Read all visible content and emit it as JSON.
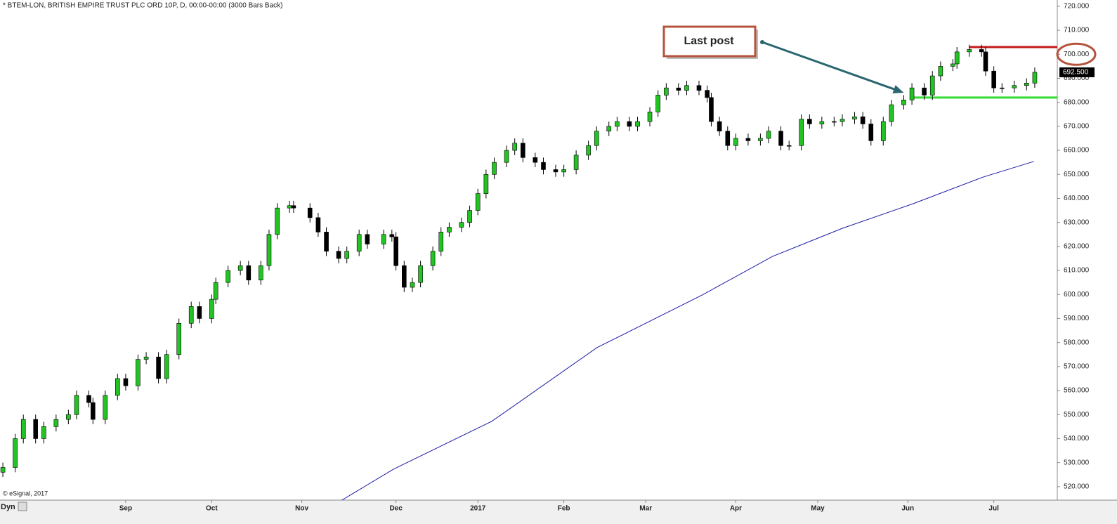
{
  "chart_data": {
    "type": "candlestick",
    "title": "* BTEM-LON, BRITISH EMPIRE TRUST PLC ORD 10P, D, 00:00-00:00 (3000 Bars Back)",
    "watermark": "© eSignal, 2017",
    "mode_label": "Dyn",
    "up_color": "#22c322",
    "down_color": "#000000",
    "x": [
      0,
      3,
      5,
      8,
      10,
      13,
      16,
      18,
      21,
      22,
      25,
      28,
      30,
      33,
      35,
      38,
      40,
      43,
      46,
      48,
      51,
      52,
      55,
      58,
      60,
      63,
      65,
      67,
      70,
      71,
      75,
      77,
      79,
      82,
      84,
      87,
      89,
      93,
      95,
      96,
      98,
      100,
      102,
      105,
      107,
      109,
      112,
      114,
      116,
      118,
      120,
      123,
      125,
      127,
      130,
      132,
      135,
      137,
      140,
      143,
      145,
      148,
      150,
      153,
      155,
      158,
      160,
      162,
      165,
      167,
      170,
      172,
      173,
      175,
      177,
      179,
      182,
      185,
      187,
      190,
      192,
      195,
      197,
      200,
      203,
      205,
      208,
      210,
      212,
      215,
      217,
      220,
      222,
      225,
      227,
      229,
      232,
      233,
      236,
      239,
      240,
      242,
      244,
      247,
      250,
      252
    ],
    "open": [
      526,
      528,
      540,
      548,
      540,
      545,
      548,
      550,
      558,
      555,
      548,
      558,
      565,
      562,
      573,
      574,
      565,
      575,
      588,
      595,
      590,
      598,
      605,
      610,
      612,
      606,
      612,
      625,
      636,
      637,
      636,
      632,
      626,
      618,
      615,
      618,
      625,
      621,
      625,
      624,
      612,
      603,
      605,
      612,
      618,
      626,
      628,
      630,
      635,
      642,
      650,
      655,
      660,
      663,
      657,
      655,
      652,
      651,
      652,
      658,
      662,
      668,
      670,
      672,
      670,
      672,
      676,
      683,
      686,
      685,
      687,
      685,
      682,
      672,
      668,
      662,
      665,
      664,
      665,
      668,
      662,
      662,
      673,
      671,
      672,
      672,
      673,
      674,
      671,
      664,
      672,
      679,
      681,
      686,
      683,
      691,
      695,
      696,
      701,
      702,
      701,
      693,
      686,
      686,
      687,
      688
    ],
    "high": [
      530,
      542,
      550,
      550,
      547,
      550,
      552,
      560,
      560,
      557,
      560,
      567,
      567,
      575,
      576,
      576,
      577,
      590,
      597,
      597,
      600,
      607,
      612,
      614,
      614,
      614,
      627,
      638,
      639,
      639,
      638,
      634,
      628,
      620,
      620,
      627,
      627,
      627,
      627,
      626,
      614,
      607,
      614,
      620,
      628,
      630,
      632,
      637,
      644,
      652,
      657,
      662,
      665,
      665,
      659,
      657,
      654,
      654,
      660,
      664,
      670,
      672,
      674,
      674,
      674,
      678,
      685,
      688,
      688,
      689,
      689,
      687,
      684,
      674,
      670,
      667,
      667,
      667,
      670,
      670,
      664,
      675,
      675,
      674,
      674,
      675,
      676,
      676,
      673,
      674,
      681,
      683,
      688,
      688,
      693,
      697,
      698,
      703,
      704,
      704,
      703,
      695,
      688,
      689,
      690,
      694.5
    ],
    "low": [
      524,
      526,
      538,
      538,
      538,
      543,
      546,
      548,
      553,
      546,
      546,
      556,
      560,
      560,
      571,
      563,
      563,
      573,
      586,
      588,
      588,
      596,
      603,
      608,
      604,
      604,
      610,
      623,
      634,
      634,
      630,
      624,
      616,
      613,
      613,
      616,
      619,
      619,
      622,
      610,
      601,
      601,
      603,
      610,
      616,
      624,
      626,
      628,
      633,
      640,
      648,
      653,
      658,
      655,
      653,
      650,
      649,
      649,
      650,
      656,
      660,
      666,
      668,
      668,
      668,
      670,
      674,
      681,
      683,
      683,
      683,
      680,
      670,
      666,
      660,
      660,
      662,
      662,
      663,
      660,
      660,
      660,
      669,
      669,
      670,
      670,
      671,
      669,
      662,
      662,
      670,
      677,
      679,
      681,
      681,
      689,
      693,
      694,
      699,
      699,
      691,
      684,
      684,
      684,
      685,
      686
    ],
    "close": [
      528,
      540,
      548,
      540,
      545,
      548,
      550,
      558,
      555,
      548,
      558,
      565,
      562,
      573,
      574,
      565,
      575,
      588,
      595,
      590,
      598,
      605,
      610,
      612,
      606,
      612,
      625,
      636,
      637,
      636,
      632,
      626,
      618,
      615,
      618,
      625,
      621,
      625,
      624,
      612,
      603,
      605,
      612,
      618,
      626,
      628,
      630,
      635,
      642,
      650,
      655,
      660,
      663,
      657,
      655,
      652,
      651,
      652,
      658,
      662,
      668,
      670,
      672,
      670,
      672,
      676,
      683,
      686,
      685,
      687,
      685,
      682,
      672,
      668,
      662,
      665,
      664,
      665,
      668,
      662,
      662,
      673,
      671,
      672,
      672,
      673,
      674,
      671,
      664,
      672,
      679,
      681,
      686,
      683,
      691,
      695,
      696,
      701,
      702,
      701,
      693,
      686,
      686,
      687,
      688,
      692.5
    ],
    "ma": {
      "color": "#1a1aa8",
      "x": [
        82.8,
        95.4,
        119.4,
        145.1,
        170.8,
        188,
        205.1,
        222.3,
        239.4,
        251.8
      ],
      "values": [
        514.4,
        527.3,
        547.2,
        577.9,
        599.8,
        615.9,
        627.6,
        637.8,
        648.9,
        655.4
      ]
    },
    "levels": [
      {
        "value": 703,
        "x_start": 236,
        "color": "#c41a1a"
      },
      {
        "value": 682,
        "x_start": 222,
        "color": "#33dd33"
      }
    ],
    "last_price": {
      "value": 692.5,
      "label": "692.500"
    },
    "annotation": {
      "text": "Last post",
      "target_x": 220,
      "target_value": 684,
      "border": "#b5533c",
      "arrow_color": "#2a6670",
      "circled_tick": 700
    },
    "xlim": [
      -0.7,
      257.5
    ],
    "xticks": [
      {
        "value": 30,
        "label": "Sep"
      },
      {
        "value": 51,
        "label": "Oct"
      },
      {
        "value": 73,
        "label": "Nov"
      },
      {
        "value": 96,
        "label": "Dec"
      },
      {
        "value": 116,
        "label": "2017"
      },
      {
        "value": 137,
        "label": "Feb"
      },
      {
        "value": 157,
        "label": "Mar"
      },
      {
        "value": 179,
        "label": "Apr"
      },
      {
        "value": 199,
        "label": "May"
      },
      {
        "value": 221,
        "label": "Jun"
      },
      {
        "value": 242,
        "label": "Jul"
      }
    ],
    "ylim": [
      514.4,
      722.6
    ],
    "yticks": [
      {
        "value": 520,
        "label": "520.000"
      },
      {
        "value": 530,
        "label": "530.000"
      },
      {
        "value": 540,
        "label": "540.000"
      },
      {
        "value": 550,
        "label": "550.000"
      },
      {
        "value": 560,
        "label": "560.000"
      },
      {
        "value": 570,
        "label": "570.000"
      },
      {
        "value": 580,
        "label": "580.000"
      },
      {
        "value": 590,
        "label": "590.000"
      },
      {
        "value": 600,
        "label": "600.000"
      },
      {
        "value": 610,
        "label": "610.000"
      },
      {
        "value": 620,
        "label": "620.000"
      },
      {
        "value": 630,
        "label": "630.000"
      },
      {
        "value": 640,
        "label": "640.000"
      },
      {
        "value": 650,
        "label": "650.000"
      },
      {
        "value": 660,
        "label": "660.000"
      },
      {
        "value": 670,
        "label": "670.000"
      },
      {
        "value": 680,
        "label": "680.000"
      },
      {
        "value": 690,
        "label": "690.000"
      },
      {
        "value": 700,
        "label": "700.000"
      },
      {
        "value": 710,
        "label": "710.000"
      },
      {
        "value": 720,
        "label": "720.000"
      }
    ]
  }
}
